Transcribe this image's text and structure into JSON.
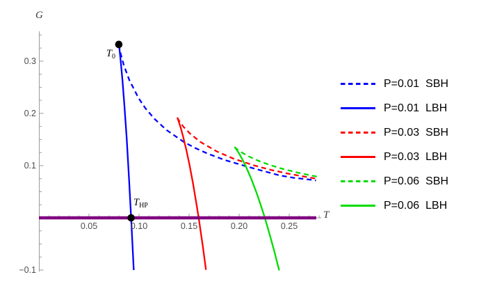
{
  "figure": {
    "y_axis_label": "G",
    "x_axis_label": "T",
    "x_tick_labels": [
      "0.05",
      "0.10",
      "0.15",
      "0.20",
      "0.25"
    ],
    "y_tick_labels": [
      "0.3",
      "0.2",
      "0.1",
      "−0.1"
    ],
    "tick_label_color": "#4d4d4d",
    "axis_color": "#9a9a9a",
    "background": "#ffffff"
  },
  "annotations": {
    "t0_main": "T",
    "t0_sub": "0",
    "thp_main": "T",
    "thp_sub": "HP"
  },
  "legend": {
    "entries": [
      {
        "p": "P=0.01",
        "branch": "SBH",
        "color": "#0000ff",
        "dashed": true
      },
      {
        "p": "P=0.01",
        "branch": "LBH",
        "color": "#0000ff",
        "dashed": false
      },
      {
        "p": "P=0.03",
        "branch": "SBH",
        "color": "#ff0000",
        "dashed": true
      },
      {
        "p": "P=0.03",
        "branch": "LBH",
        "color": "#ff0000",
        "dashed": false
      },
      {
        "p": "P=0.06",
        "branch": "SBH",
        "color": "#00dc00",
        "dashed": true
      },
      {
        "p": "P=0.06",
        "branch": "LBH",
        "color": "#00dc00",
        "dashed": false
      }
    ]
  },
  "chart_data": {
    "type": "line",
    "title": "",
    "xlabel": "T",
    "ylabel": "G",
    "xlim": [
      0,
      0.282
    ],
    "ylim": [
      -0.103,
      0.357
    ],
    "grid": false,
    "legend_position": "right-outside",
    "axis_color": "#9a9a9a",
    "x_ticks_major": [
      0.05,
      0.1,
      0.15,
      0.2,
      0.25
    ],
    "x_ticks_minor": [
      0.01,
      0.02,
      0.03,
      0.04,
      0.06,
      0.07,
      0.08,
      0.09,
      0.11,
      0.12,
      0.13,
      0.14,
      0.16,
      0.17,
      0.18,
      0.19,
      0.21,
      0.22,
      0.23,
      0.24,
      0.26,
      0.27,
      0.28
    ],
    "y_ticks_major": [
      -0.1,
      0,
      0.1,
      0.2,
      0.3
    ],
    "y_ticks_minor": [
      -0.075,
      -0.05,
      -0.025,
      0.025,
      0.05,
      0.075,
      0.125,
      0.15,
      0.175,
      0.225,
      0.25,
      0.275,
      0.325,
      0.35
    ],
    "series": [
      {
        "name": "P=0.01 SBH",
        "color": "#0000ff",
        "dashed": true,
        "points": [
          [
            0.0798,
            0.332
          ],
          [
            0.0802,
            0.3279
          ],
          [
            0.0817,
            0.3142
          ],
          [
            0.0848,
            0.2925
          ],
          [
            0.0903,
            0.2638
          ],
          [
            0.0996,
            0.2291
          ],
          [
            0.1064,
            0.2097
          ],
          [
            0.1155,
            0.1893
          ],
          [
            0.1277,
            0.1678
          ],
          [
            0.1446,
            0.1455
          ],
          [
            0.1557,
            0.134
          ],
          [
            0.1692,
            0.1224
          ],
          [
            0.1858,
            0.1106
          ],
          [
            0.2069,
            0.0987
          ],
          [
            0.2225,
            0.0905
          ],
          [
            0.2409,
            0.081
          ],
          [
            0.2551,
            0.0765
          ],
          [
            0.2713,
            0.073
          ],
          [
            0.2768,
            0.0715
          ]
        ]
      },
      {
        "name": "P=0.01 LBH",
        "color": "#0000ff",
        "dashed": false,
        "points": [
          [
            0.0798,
            0.332
          ],
          [
            0.0799,
            0.3311
          ],
          [
            0.0806,
            0.3202
          ],
          [
            0.0818,
            0.2978
          ],
          [
            0.0835,
            0.2629
          ],
          [
            0.0854,
            0.2143
          ],
          [
            0.0877,
            0.1512
          ],
          [
            0.0901,
            0.0725
          ],
          [
            0.0921,
            0.0
          ],
          [
            0.0927,
            -0.0228
          ],
          [
            0.0947,
            -0.1001
          ]
        ]
      },
      {
        "name": "P=0.03 SBH",
        "color": "#ff0000",
        "dashed": true,
        "points": [
          [
            0.1382,
            0.1919
          ],
          [
            0.1388,
            0.1898
          ],
          [
            0.1408,
            0.1836
          ],
          [
            0.1446,
            0.1739
          ],
          [
            0.1511,
            0.161
          ],
          [
            0.1614,
            0.1452
          ],
          [
            0.1777,
            0.1271
          ],
          [
            0.1946,
            0.1131
          ],
          [
            0.2147,
            0.1004
          ],
          [
            0.2322,
            0.0916
          ],
          [
            0.2514,
            0.0837
          ],
          [
            0.2679,
            0.0779
          ],
          [
            0.2776,
            0.0749
          ]
        ]
      },
      {
        "name": "P=0.03 LBH",
        "color": "#ff0000",
        "dashed": false,
        "points": [
          [
            0.1382,
            0.1919
          ],
          [
            0.1387,
            0.1898
          ],
          [
            0.1399,
            0.1829
          ],
          [
            0.1419,
            0.171
          ],
          [
            0.1443,
            0.1535
          ],
          [
            0.1472,
            0.1303
          ],
          [
            0.1505,
            0.1008
          ],
          [
            0.154,
            0.0648
          ],
          [
            0.1578,
            0.0217
          ],
          [
            0.1598,
            -0.0027
          ],
          [
            0.1639,
            -0.0568
          ],
          [
            0.1669,
            -0.0995
          ]
        ]
      },
      {
        "name": "P=0.06 SBH",
        "color": "#00dc00",
        "dashed": true,
        "points": [
          [
            0.1954,
            0.1357
          ],
          [
            0.1961,
            0.1345
          ],
          [
            0.1986,
            0.1305
          ],
          [
            0.2028,
            0.125
          ],
          [
            0.2093,
            0.1179
          ],
          [
            0.2192,
            0.1093
          ],
          [
            0.2308,
            0.1011
          ],
          [
            0.2433,
            0.0938
          ],
          [
            0.2572,
            0.0871
          ],
          [
            0.2694,
            0.0821
          ],
          [
            0.2777,
            0.079
          ]
        ]
      },
      {
        "name": "P=0.06 LBH",
        "color": "#00dc00",
        "dashed": false,
        "points": [
          [
            0.1954,
            0.1357
          ],
          [
            0.196,
            0.1344
          ],
          [
            0.1978,
            0.1298
          ],
          [
            0.2004,
            0.1216
          ],
          [
            0.2038,
            0.1098
          ],
          [
            0.2078,
            0.0939
          ],
          [
            0.2123,
            0.0737
          ],
          [
            0.2172,
            0.0489
          ],
          [
            0.2225,
            0.0193
          ],
          [
            0.2257,
            0.0
          ],
          [
            0.2305,
            -0.0317
          ],
          [
            0.2356,
            -0.0676
          ],
          [
            0.24,
            -0.1006
          ]
        ]
      }
    ],
    "hline": {
      "name": "thermal-ads-radiation-line",
      "color": "#800080",
      "g": 0,
      "t_start": 0,
      "t_end": 0.277,
      "width": 4.6
    },
    "markers": [
      {
        "name": "T0",
        "t": 0.0798,
        "g": 0.332
      },
      {
        "name": "THP",
        "t": 0.0921,
        "g": 0
      }
    ],
    "marker_color": "#000000",
    "marker_radius": 5.3
  }
}
